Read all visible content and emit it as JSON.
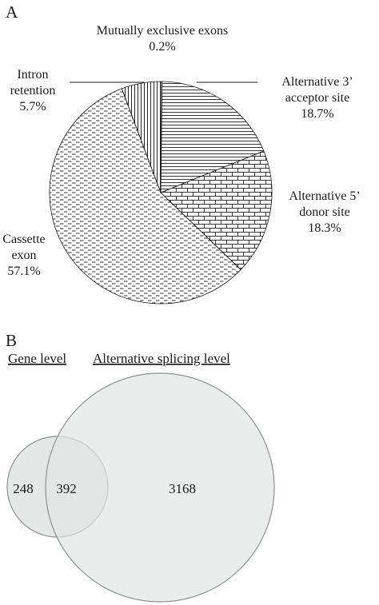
{
  "panels": {
    "a": "A",
    "b": "B"
  },
  "chart_data": [
    {
      "type": "pie",
      "panel": "A",
      "slices": [
        {
          "label_lines": [
            "Mutually exclusive exons",
            "0.2%"
          ],
          "value": 0.2,
          "pattern": "none"
        },
        {
          "label_lines": [
            "Alternative 3’",
            "acceptor site",
            "18.7%"
          ],
          "value": 18.7,
          "pattern": "hlines"
        },
        {
          "label_lines": [
            "Alternative 5’",
            "donor site",
            "18.3%"
          ],
          "value": 18.3,
          "pattern": "bricks"
        },
        {
          "label_lines": [
            "Cassette",
            "exon",
            "57.1%"
          ],
          "value": 57.1,
          "pattern": "dashes"
        },
        {
          "label_lines": [
            "Intron",
            "retention",
            "5.7%"
          ],
          "value": 5.7,
          "pattern": "vlines"
        }
      ]
    },
    {
      "type": "venn",
      "panel": "B",
      "sets": [
        {
          "name": "Gene level",
          "only": 248
        },
        {
          "name": "Alternative splicing level",
          "only": 3168
        }
      ],
      "overlap": 392,
      "fill_color": "#dfe5e4",
      "stroke_color": "#8a9291"
    }
  ]
}
